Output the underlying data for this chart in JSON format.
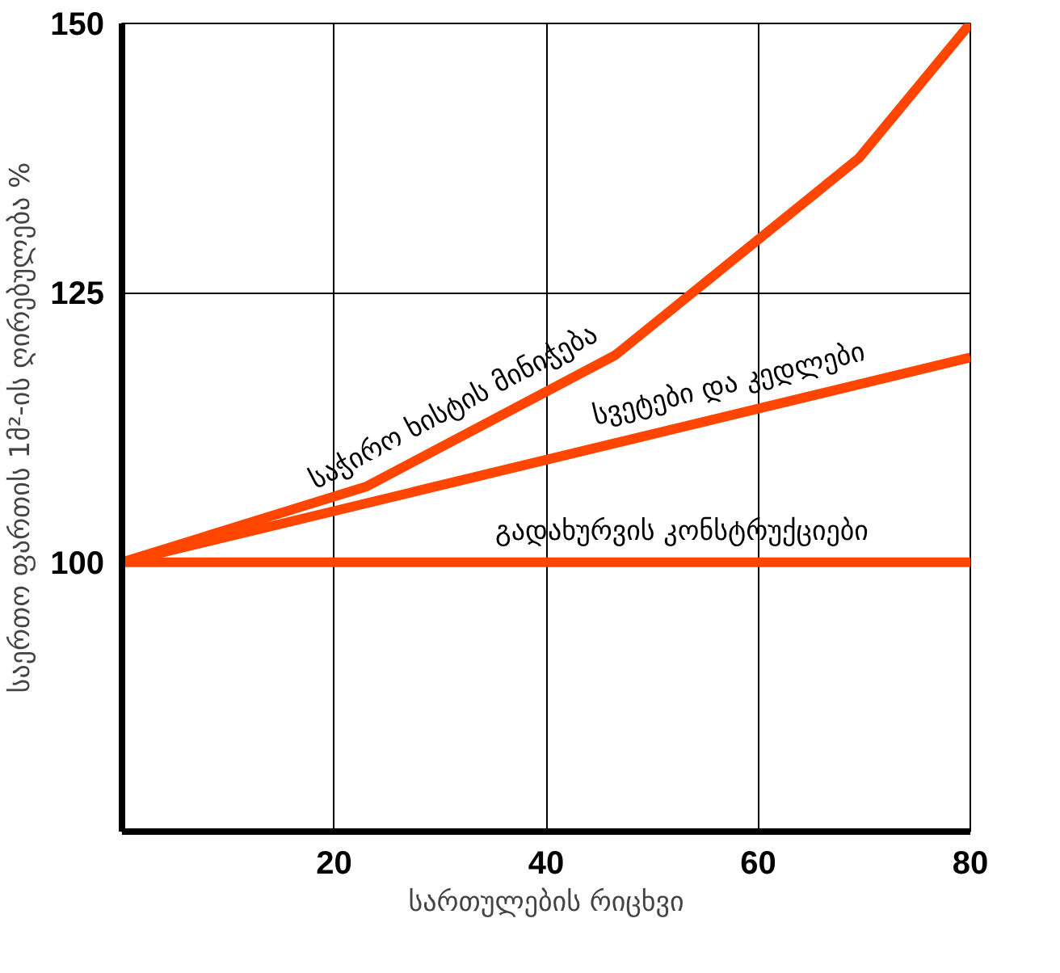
{
  "chart_data": {
    "type": "line",
    "xlabel": "სართულების რიცხვი",
    "ylabel": "საერთო ფართის 1მ²-ის ღირებულება %",
    "xlim": [
      0,
      80
    ],
    "ylim": [
      75,
      150
    ],
    "xticks": [
      20,
      40,
      60,
      80
    ],
    "yticks": [
      100,
      125,
      150
    ],
    "grid": true,
    "legend": false,
    "marker": "none",
    "line_style": "solid",
    "series": [
      {
        "name": "საჭირო ხისტის მინიჭება",
        "color": "#ff4500",
        "x": [
          0,
          23,
          46.5,
          69.5,
          80
        ],
        "values": [
          100,
          107,
          119.2,
          137.5,
          150
        ]
      },
      {
        "name": "სვეტები და კედლები",
        "color": "#ff4500",
        "x": [
          0,
          80
        ],
        "values": [
          100,
          119
        ]
      },
      {
        "name": "გადახურვის კონსტრუქციები",
        "color": "#ff4500",
        "x": [
          0,
          80
        ],
        "values": [
          100,
          100
        ]
      }
    ]
  }
}
